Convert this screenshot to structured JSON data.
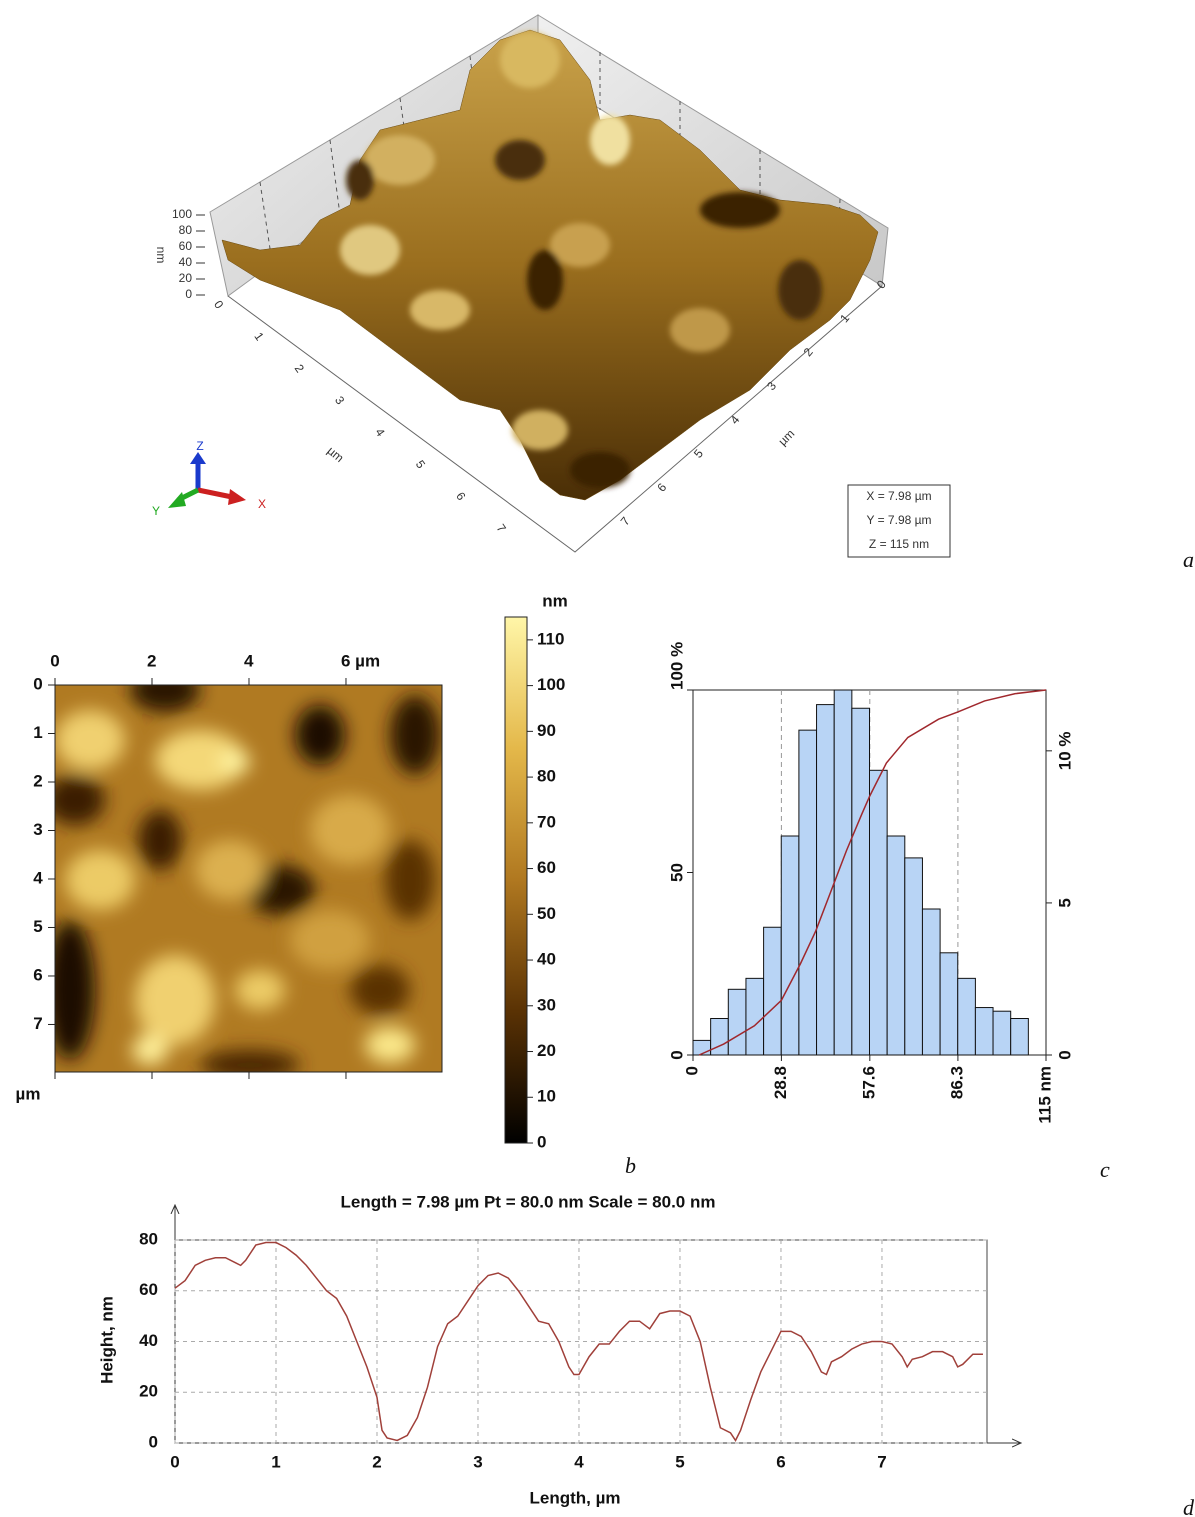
{
  "chart_data": [
    {
      "type": "surface3d",
      "panel": "a",
      "zlabel": "nm",
      "zticks": [
        0,
        20,
        40,
        60,
        80,
        100
      ],
      "zlim": [
        0,
        100
      ],
      "xlabel": "µm",
      "xticks": [
        0,
        1,
        2,
        3,
        4,
        5,
        6,
        7
      ],
      "ylabel": "µm",
      "yticks": [
        0,
        1,
        2,
        3,
        4,
        5,
        6,
        7
      ],
      "lim": [
        0,
        7.98
      ],
      "axis_glyphs": [
        "Z",
        "Y",
        "X"
      ],
      "info": [
        "X = 7.98 µm",
        "Y = 7.98 µm",
        "Z = 115 nm"
      ]
    },
    {
      "type": "heatmap",
      "panel": "b",
      "xlim": [
        0,
        7.98
      ],
      "ylim": [
        0,
        7.98
      ],
      "xticks": [
        0,
        2,
        4,
        {
          "value": 6,
          "label": "6 µm"
        }
      ],
      "yticks": [
        0,
        1,
        2,
        3,
        4,
        5,
        6,
        7
      ],
      "ylabel": "µm",
      "colorbar": {
        "label": "nm",
        "lim": [
          0,
          115
        ],
        "ticks": [
          0,
          10,
          20,
          30,
          40,
          50,
          60,
          70,
          80,
          90,
          100,
          110
        ]
      }
    },
    {
      "type": "histogram",
      "panel": "c",
      "color": "#b8d4f5",
      "bins": [
        0,
        5.75,
        11.5,
        17.25,
        23,
        28.75,
        34.5,
        40.25,
        46,
        51.75,
        57.5,
        63.25,
        69,
        74.75,
        80.5,
        86.25,
        92,
        97.75,
        103.5,
        109.25
      ],
      "values": [
        4,
        10,
        18,
        21,
        35,
        60,
        89,
        96,
        100,
        95,
        78,
        60,
        54,
        40,
        28,
        21,
        13,
        12,
        10
      ],
      "xlim": [
        0,
        115
      ],
      "xticks": [
        0,
        28.8,
        57.6,
        86.3,
        {
          "value": 115,
          "label": "115 nm"
        }
      ],
      "ylim": [
        0,
        100
      ],
      "yticks": [
        0,
        50,
        {
          "value": 100,
          "label": "100 %"
        }
      ],
      "y2lim": [
        0,
        12
      ],
      "y2ticks": [
        0,
        5,
        {
          "value": 10,
          "label": "10 %"
        }
      ],
      "grid": true,
      "curve": {
        "color": "#a0282d",
        "x": [
          2,
          10,
          20,
          28.8,
          35,
          40,
          45,
          50,
          55,
          57.6,
          63,
          70,
          80,
          86.3,
          95,
          105,
          115
        ],
        "values": [
          0,
          3,
          8,
          15,
          25,
          34,
          45,
          56,
          66,
          71,
          80,
          87,
          92,
          94,
          97,
          99,
          100
        ]
      }
    },
    {
      "type": "line",
      "panel": "d",
      "title": "Length = 7.98 µm  Pt = 80.0 nm  Scale = 80.0 nm",
      "xlabel": "Length, µm",
      "ylabel": "Height, nm",
      "color": "#a0403a",
      "grid": true,
      "xlim": [
        0,
        8.04
      ],
      "xticks": [
        0,
        1,
        2,
        3,
        4,
        5,
        6,
        7
      ],
      "ylim": [
        0,
        80
      ],
      "yticks": [
        0,
        20,
        40,
        60,
        80
      ],
      "x": [
        0,
        0.1,
        0.2,
        0.3,
        0.4,
        0.5,
        0.6,
        0.65,
        0.7,
        0.8,
        0.9,
        1.0,
        1.1,
        1.2,
        1.3,
        1.4,
        1.5,
        1.6,
        1.7,
        1.8,
        1.9,
        2.0,
        2.05,
        2.1,
        2.2,
        2.3,
        2.4,
        2.5,
        2.6,
        2.7,
        2.8,
        2.9,
        3.0,
        3.1,
        3.2,
        3.3,
        3.4,
        3.5,
        3.6,
        3.7,
        3.8,
        3.9,
        3.95,
        4.0,
        4.1,
        4.2,
        4.3,
        4.4,
        4.5,
        4.6,
        4.7,
        4.8,
        4.9,
        5.0,
        5.1,
        5.2,
        5.3,
        5.4,
        5.5,
        5.55,
        5.6,
        5.7,
        5.8,
        5.9,
        6.0,
        6.1,
        6.2,
        6.3,
        6.4,
        6.45,
        6.5,
        6.6,
        6.7,
        6.8,
        6.9,
        7.0,
        7.1,
        7.2,
        7.25,
        7.3,
        7.4,
        7.5,
        7.6,
        7.7,
        7.75,
        7.8,
        7.9,
        8.0
      ],
      "values": [
        61,
        64,
        70,
        72,
        73,
        73,
        71,
        70,
        72,
        78,
        79,
        79,
        77,
        74,
        70,
        65,
        60,
        57,
        50,
        40,
        30,
        18,
        5,
        2,
        1,
        3,
        10,
        22,
        38,
        47,
        50,
        56,
        62,
        66,
        67,
        65,
        60,
        54,
        48,
        47,
        40,
        30,
        27,
        27,
        34,
        39,
        39,
        44,
        48,
        48,
        45,
        51,
        52,
        52,
        50,
        40,
        22,
        6,
        4,
        1,
        5,
        17,
        28,
        36,
        44,
        44,
        42,
        36,
        28,
        27,
        32,
        34,
        37,
        39,
        40,
        40,
        39,
        34,
        30,
        33,
        34,
        36,
        36,
        34,
        30,
        31,
        35,
        35
      ]
    }
  ]
}
